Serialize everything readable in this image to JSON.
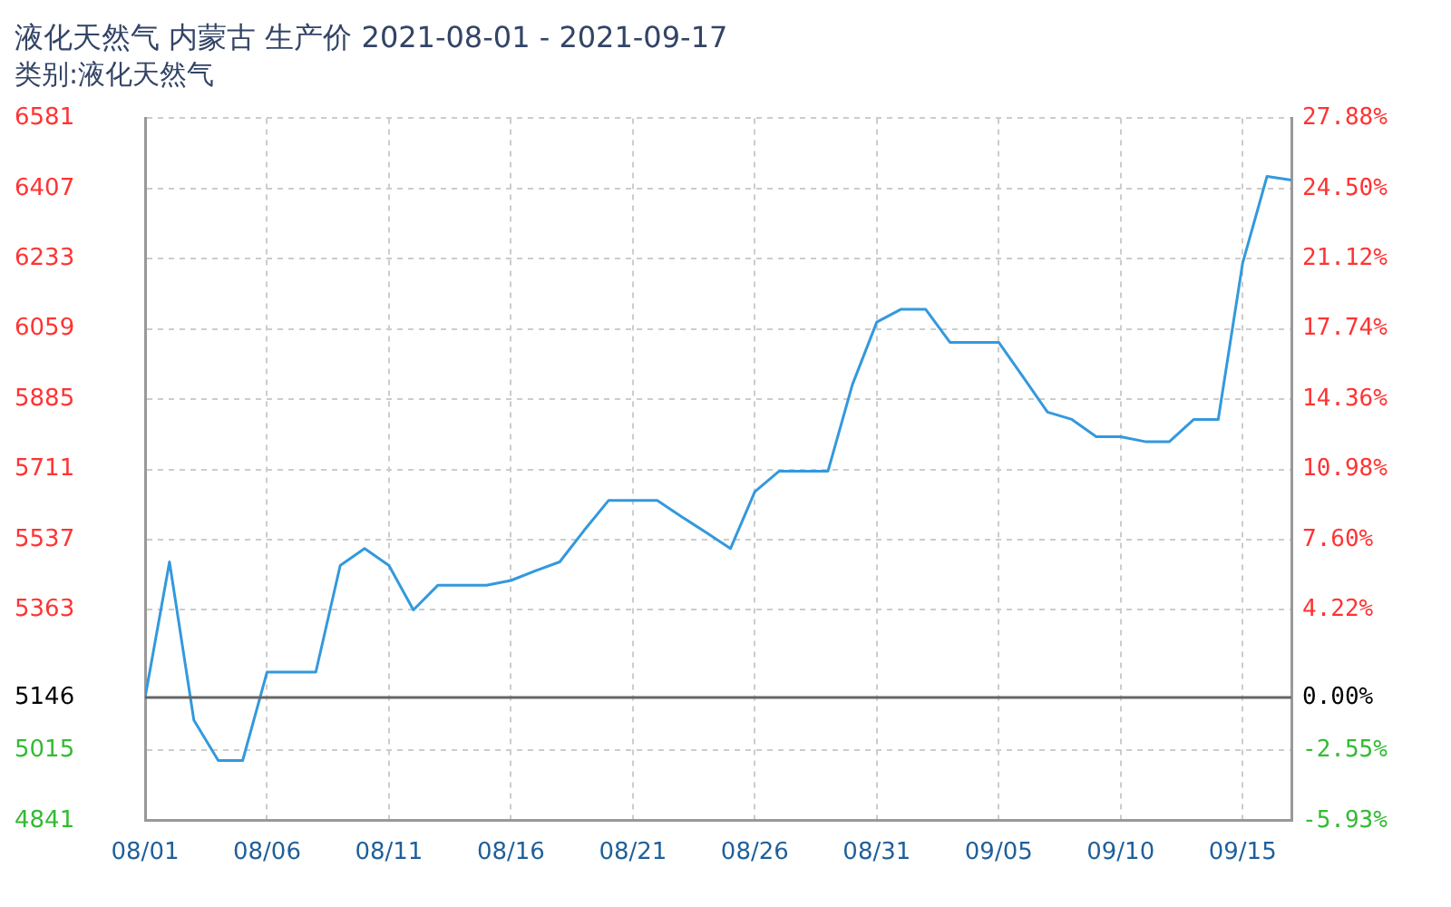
{
  "chart_data": {
    "type": "line",
    "title": "液化天然气 内蒙古 生产价 2021-08-01 - 2021-09-17",
    "subtitle": "类别:液化天然气",
    "x": [
      "2021-08-01",
      "2021-08-02",
      "2021-08-03",
      "2021-08-04",
      "2021-08-05",
      "2021-08-06",
      "2021-08-07",
      "2021-08-08",
      "2021-08-09",
      "2021-08-10",
      "2021-08-11",
      "2021-08-12",
      "2021-08-13",
      "2021-08-14",
      "2021-08-15",
      "2021-08-16",
      "2021-08-17",
      "2021-08-18",
      "2021-08-19",
      "2021-08-20",
      "2021-08-21",
      "2021-08-22",
      "2021-08-23",
      "2021-08-24",
      "2021-08-25",
      "2021-08-26",
      "2021-08-27",
      "2021-08-28",
      "2021-08-29",
      "2021-08-30",
      "2021-08-31",
      "2021-09-01",
      "2021-09-02",
      "2021-09-03",
      "2021-09-04",
      "2021-09-05",
      "2021-09-06",
      "2021-09-07",
      "2021-09-08",
      "2021-09-09",
      "2021-09-10",
      "2021-09-11",
      "2021-09-12",
      "2021-09-13",
      "2021-09-14",
      "2021-09-15",
      "2021-09-16",
      "2021-09-17"
    ],
    "series": [
      {
        "color": "#3399dd",
        "values": [
          5146,
          5482,
          5090,
          4990,
          4990,
          5209,
          5209,
          5209,
          5473,
          5515,
          5473,
          5363,
          5424,
          5424,
          5424,
          5436,
          5460,
          5482,
          5560,
          5634,
          5634,
          5634,
          5594,
          5555,
          5515,
          5656,
          5707,
          5707,
          5707,
          5921,
          6076,
          6108,
          6108,
          6026,
          6026,
          6026,
          5940,
          5853,
          5835,
          5792,
          5792,
          5780,
          5780,
          5835,
          5835,
          6222,
          6437,
          6428
        ]
      }
    ],
    "xlim": [
      "2021-08-01",
      "2021-09-17"
    ],
    "xticks": [
      {
        "value": "2021-08-01",
        "label": "08/01"
      },
      {
        "value": "2021-08-06",
        "label": "08/06"
      },
      {
        "value": "2021-08-11",
        "label": "08/11"
      },
      {
        "value": "2021-08-16",
        "label": "08/16"
      },
      {
        "value": "2021-08-21",
        "label": "08/21"
      },
      {
        "value": "2021-08-26",
        "label": "08/26"
      },
      {
        "value": "2021-08-31",
        "label": "08/31"
      },
      {
        "value": "2021-09-05",
        "label": "09/05"
      },
      {
        "value": "2021-09-10",
        "label": "09/10"
      },
      {
        "value": "2021-09-15",
        "label": "09/15"
      }
    ],
    "ylim": [
      4841,
      6581
    ],
    "yticks": [
      4841,
      5015,
      5146,
      5363,
      5537,
      5711,
      5885,
      6059,
      6233,
      6407,
      6581
    ],
    "y2lim": [
      -5.93,
      27.88
    ],
    "y2ticks": [
      {
        "value": -5.93,
        "label": "-5.93%"
      },
      {
        "value": -2.55,
        "label": "-2.55%"
      },
      {
        "value": 0,
        "label": "0.00%"
      },
      {
        "value": 4.22,
        "label": "4.22%"
      },
      {
        "value": 7.6,
        "label": "7.60%"
      },
      {
        "value": 10.98,
        "label": "10.98%"
      },
      {
        "value": 14.36,
        "label": "14.36%"
      },
      {
        "value": 17.74,
        "label": "17.74%"
      },
      {
        "value": 21.12,
        "label": "21.12%"
      },
      {
        "value": 24.5,
        "label": "24.50%"
      },
      {
        "value": 27.88,
        "label": "27.88%"
      }
    ],
    "ref_lines": [
      {
        "axis": "y",
        "value": 5146,
        "color": "#666666"
      }
    ],
    "grid": true,
    "legend": false,
    "marker": "none",
    "line_style": "solid"
  }
}
